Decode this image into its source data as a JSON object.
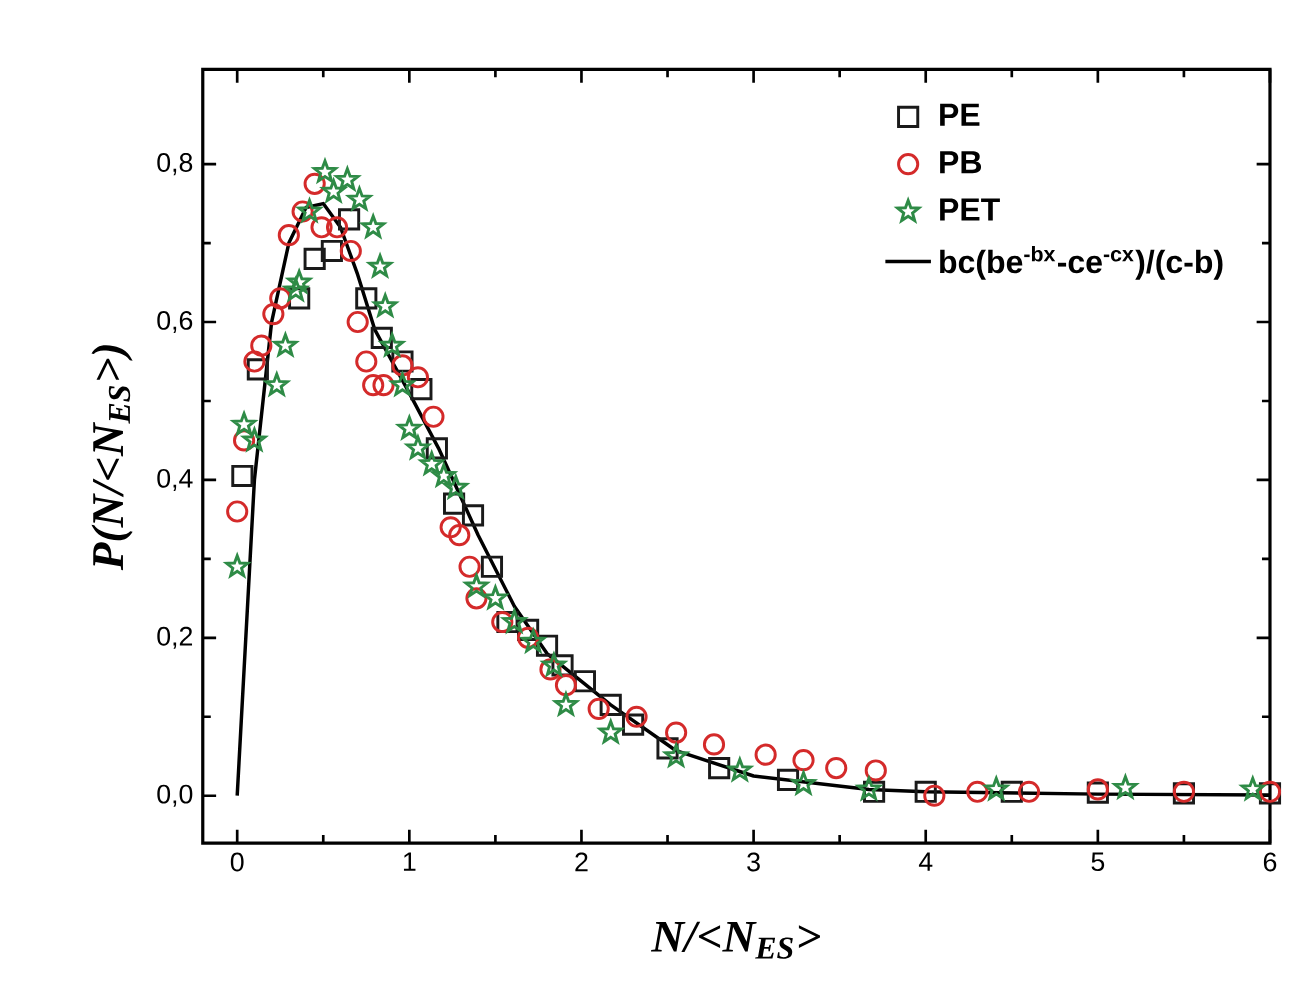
{
  "chart_data": {
    "type": "scatter",
    "xlabel": "N/<N$_{ES}$>",
    "ylabel": "P(N/<N$_{ES}$>)",
    "xlim": [
      -0.2,
      6.0
    ],
    "ylim": [
      -0.06,
      0.92
    ],
    "xticks": [
      0,
      1,
      2,
      3,
      4,
      5,
      6
    ],
    "yticks": [
      {
        "value": 0,
        "label": "0,0"
      },
      {
        "value": 0.2,
        "label": "0,2"
      },
      {
        "value": 0.4,
        "label": "0,4"
      },
      {
        "value": 0.6,
        "label": "0,6"
      },
      {
        "value": 0.8,
        "label": "0,8"
      }
    ],
    "legend": "top right",
    "grid": false,
    "series": [
      {
        "name": "PE",
        "marker": "square",
        "color": "#1a1a1a",
        "x": [
          0.03,
          0.12,
          0.36,
          0.45,
          0.55,
          0.65,
          0.75,
          0.84,
          0.96,
          1.07,
          1.16,
          1.26,
          1.37,
          1.48,
          1.57,
          1.69,
          1.8,
          1.89,
          2.02,
          2.17,
          2.3,
          2.5,
          2.8,
          3.2,
          3.7,
          4.0,
          4.5,
          5.0,
          5.5,
          6.0
        ],
        "values": [
          0.405,
          0.54,
          0.63,
          0.68,
          0.69,
          0.73,
          0.63,
          0.58,
          0.55,
          0.515,
          0.44,
          0.37,
          0.355,
          0.29,
          0.22,
          0.21,
          0.19,
          0.165,
          0.145,
          0.115,
          0.09,
          0.06,
          0.035,
          0.02,
          0.005,
          0.005,
          0.005,
          0.004,
          0.003,
          0.003
        ]
      },
      {
        "name": "PB",
        "marker": "circle",
        "color": "#d42a2a",
        "x": [
          0.0,
          0.04,
          0.1,
          0.14,
          0.21,
          0.25,
          0.3,
          0.38,
          0.45,
          0.49,
          0.58,
          0.66,
          0.7,
          0.75,
          0.79,
          0.85,
          0.96,
          1.05,
          1.14,
          1.24,
          1.29,
          1.35,
          1.39,
          1.54,
          1.69,
          1.82,
          1.91,
          2.1,
          2.32,
          2.55,
          2.77,
          3.07,
          3.29,
          3.48,
          3.71,
          4.05,
          4.3,
          4.6,
          5.0,
          5.5,
          6.0
        ],
        "values": [
          0.36,
          0.45,
          0.55,
          0.57,
          0.61,
          0.63,
          0.71,
          0.74,
          0.775,
          0.72,
          0.72,
          0.69,
          0.6,
          0.55,
          0.52,
          0.52,
          0.545,
          0.53,
          0.48,
          0.34,
          0.33,
          0.29,
          0.25,
          0.22,
          0.2,
          0.16,
          0.14,
          0.11,
          0.1,
          0.08,
          0.065,
          0.052,
          0.045,
          0.035,
          0.032,
          0.0,
          0.005,
          0.005,
          0.008,
          0.005,
          0.005
        ]
      },
      {
        "name": "PET",
        "marker": "star",
        "color": "#2e8b46",
        "x": [
          0.0,
          0.04,
          0.1,
          0.23,
          0.28,
          0.34,
          0.36,
          0.42,
          0.51,
          0.56,
          0.64,
          0.71,
          0.79,
          0.83,
          0.86,
          0.9,
          0.96,
          1.0,
          1.05,
          1.13,
          1.2,
          1.27,
          1.39,
          1.5,
          1.61,
          1.72,
          1.84,
          1.91,
          2.17,
          2.55,
          2.92,
          3.29,
          3.67,
          4.41,
          5.16,
          5.9
        ],
        "values": [
          0.29,
          0.47,
          0.45,
          0.52,
          0.57,
          0.64,
          0.65,
          0.74,
          0.79,
          0.765,
          0.78,
          0.755,
          0.72,
          0.67,
          0.62,
          0.57,
          0.52,
          0.465,
          0.44,
          0.42,
          0.405,
          0.39,
          0.265,
          0.25,
          0.22,
          0.195,
          0.165,
          0.115,
          0.08,
          0.05,
          0.032,
          0.015,
          0.008,
          0.008,
          0.01,
          0.008
        ]
      },
      {
        "name": "bc(be$^{-bx}$-ce$^{-cx}$)/(c-b)",
        "type": "line",
        "marker": "none",
        "line_style": "solid",
        "color": "#000000",
        "x": [
          0,
          0.05,
          0.1,
          0.15,
          0.2,
          0.3,
          0.4,
          0.5,
          0.6,
          0.7,
          0.8,
          0.9,
          1.0,
          1.17,
          1.4,
          1.61,
          1.8,
          2.17,
          2.55,
          3.0,
          3.67,
          4.0,
          5.0,
          6.0
        ],
        "values": [
          0,
          0.2,
          0.4,
          0.5,
          0.6,
          0.7,
          0.745,
          0.75,
          0.72,
          0.66,
          0.59,
          0.55,
          0.51,
          0.44,
          0.33,
          0.24,
          0.18,
          0.115,
          0.057,
          0.025,
          0.008,
          0.005,
          0.002,
          0.001
        ]
      }
    ]
  }
}
